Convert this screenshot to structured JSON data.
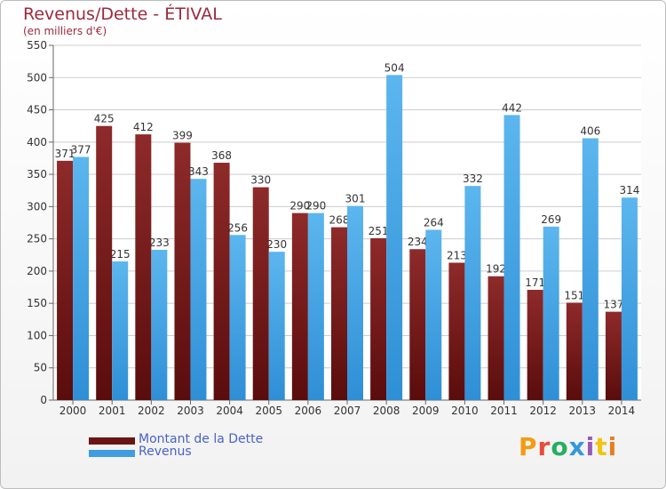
{
  "header": {
    "title": "Revenus/Dette - ÉTIVAL",
    "subtitle": "(en milliers d'€)"
  },
  "colors": {
    "dette": "#7a1c1c",
    "revenus": "#4aa3df",
    "grid": "#cccccc",
    "axis_text": "#333333"
  },
  "legend": {
    "items": [
      {
        "label": "Montant de la Dette",
        "color": "#6b1414"
      },
      {
        "label": "Revenus",
        "color": "#3f9ee0"
      }
    ]
  },
  "logo": {
    "text": "Proxiti",
    "letter_colors": [
      "#f39c12",
      "#e74c3c",
      "#27ae60",
      "#3498db",
      "#9b59b6",
      "#f1c40f",
      "#e67e22"
    ]
  },
  "chart_data": {
    "type": "bar",
    "title": "Revenus/Dette - ÉTIVAL",
    "subtitle": "(en milliers d'€)",
    "categories": [
      "2000",
      "2001",
      "2002",
      "2003",
      "2004",
      "2005",
      "2006",
      "2007",
      "2008",
      "2009",
      "2010",
      "2011",
      "2012",
      "2013",
      "2014"
    ],
    "series": [
      {
        "name": "Montant de la Dette",
        "values": [
          371,
          425,
          412,
          399,
          368,
          330,
          290,
          268,
          251,
          234,
          213,
          192,
          171,
          151,
          137
        ]
      },
      {
        "name": "Revenus",
        "values": [
          377,
          215,
          233,
          343,
          256,
          230,
          290,
          301,
          504,
          264,
          332,
          442,
          269,
          406,
          314
        ]
      }
    ],
    "ylim": [
      0,
      550
    ],
    "yticks": [
      0,
      50,
      100,
      150,
      200,
      250,
      300,
      350,
      400,
      450,
      500,
      550
    ],
    "grid": true,
    "legend_position": "bottom-left"
  }
}
